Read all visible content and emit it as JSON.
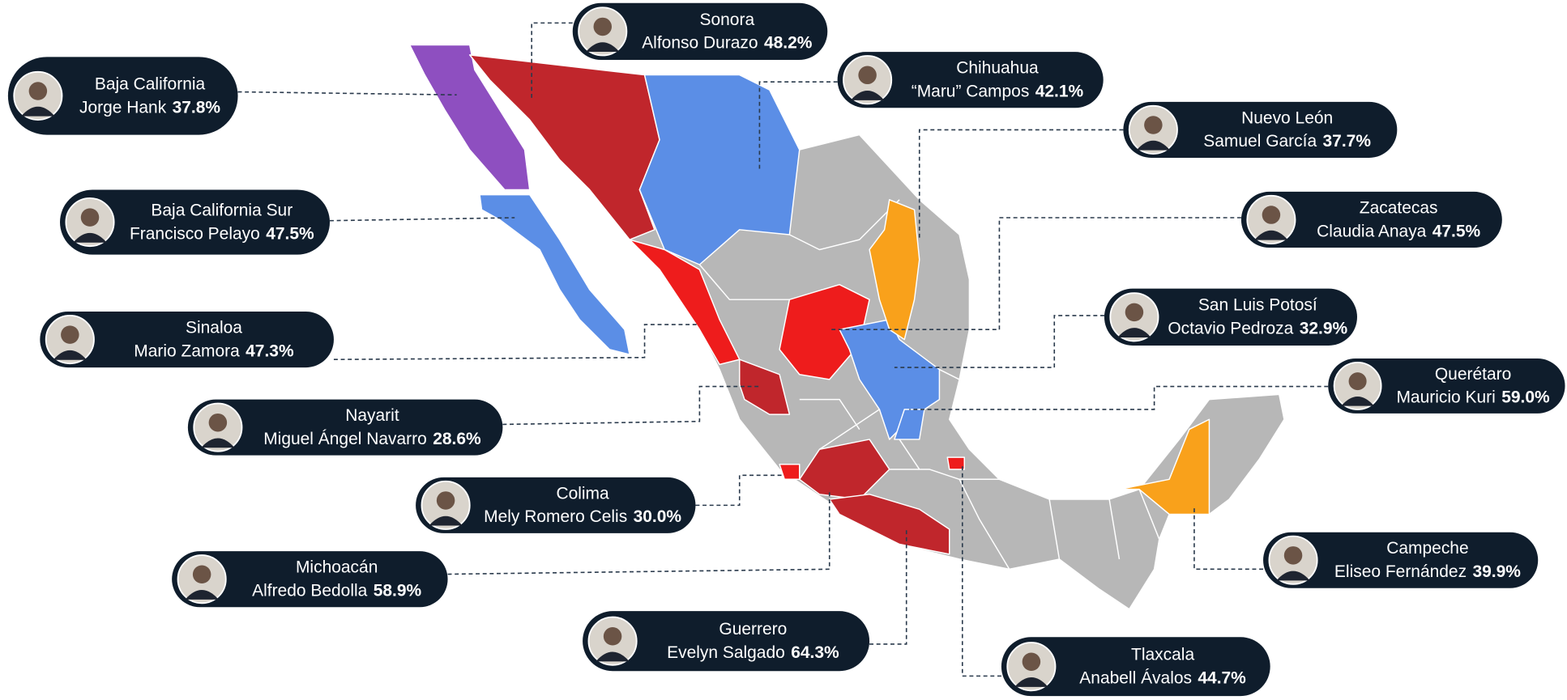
{
  "labels": [
    {
      "state": "Sonora",
      "name": "Alfonso Durazo",
      "pct": "48.2%"
    },
    {
      "state": "Baja California",
      "name": "Jorge Hank",
      "pct": "37.8%"
    },
    {
      "state": "Chihuahua",
      "name": "“Maru” Campos",
      "pct": "42.1%"
    },
    {
      "state": "Nuevo León",
      "name": "Samuel García",
      "pct": "37.7%"
    },
    {
      "state": "Baja California Sur",
      "name": "Francisco Pelayo",
      "pct": "47.5%"
    },
    {
      "state": "Zacatecas",
      "name": "Claudia Anaya",
      "pct": "47.5%"
    },
    {
      "state": "Sinaloa",
      "name": "Mario Zamora",
      "pct": "47.3%"
    },
    {
      "state": "San Luis Potosí",
      "name": "Octavio Pedroza",
      "pct": "32.9%"
    },
    {
      "state": "Querétaro",
      "name": "Mauricio Kuri",
      "pct": "59.0%"
    },
    {
      "state": "Nayarit",
      "name": "Miguel Ángel Navarro",
      "pct": "28.6%"
    },
    {
      "state": "Colima",
      "name": "Mely Romero Celis",
      "pct": "30.0%"
    },
    {
      "state": "Michoacán",
      "name": "Alfredo Bedolla",
      "pct": "58.9%"
    },
    {
      "state": "Campeche",
      "name": "Eliseo Fernández",
      "pct": "39.9%"
    },
    {
      "state": "Guerrero",
      "name": "Evelyn Salgado",
      "pct": "64.3%"
    },
    {
      "state": "Tlaxcala",
      "name": "Anabell Ávalos",
      "pct": "44.7%"
    }
  ]
}
